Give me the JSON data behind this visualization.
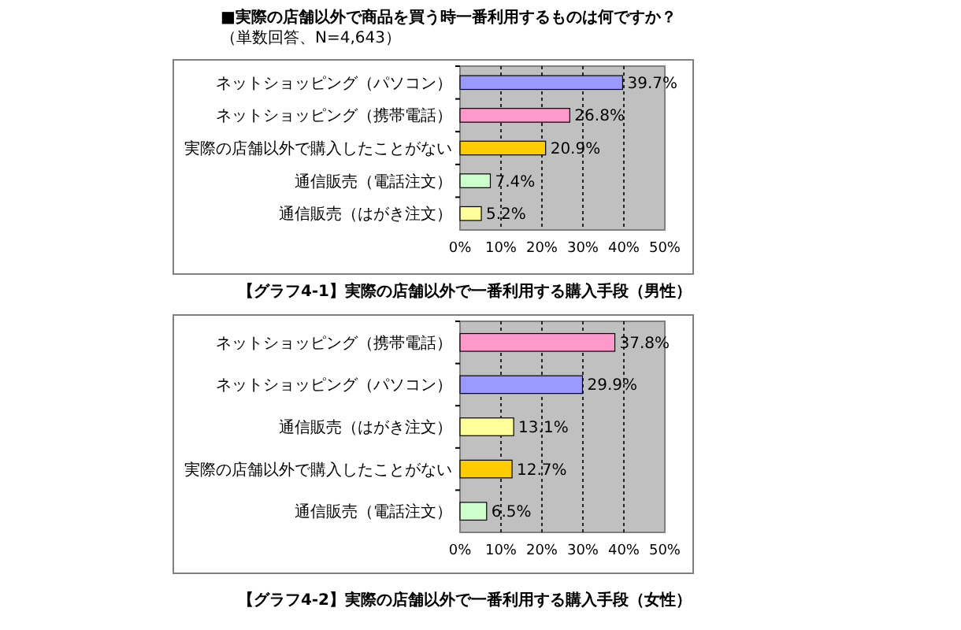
{
  "chart_data": [
    {
      "type": "bar",
      "orientation": "horizontal",
      "title": "■実際の店舗以外で商品を買う時一番利用するものは何ですか？",
      "subtitle": "（単数回答、N=4,643）",
      "categories": [
        "ネットショッピング（パソコン）",
        "ネットショッピング（携帯電話）",
        "実際の店舗以外で購入したことがない",
        "通信販売（電話注文）",
        "通信販売（はがき注文）"
      ],
      "values": [
        39.7,
        26.8,
        20.9,
        7.4,
        5.2
      ],
      "colors": [
        "#9999ff",
        "#ff99cc",
        "#ffcc00",
        "#ccffcc",
        "#ffff99"
      ],
      "value_labels": [
        "39.7%",
        "26.8%",
        "20.9%",
        "7.4%",
        "5.2%"
      ],
      "xlim": [
        0,
        50
      ],
      "xticks": [
        {
          "value": 0,
          "label": "0%"
        },
        {
          "value": 10,
          "label": "10%"
        },
        {
          "value": 20,
          "label": "20%"
        },
        {
          "value": 30,
          "label": "30%"
        },
        {
          "value": 40,
          "label": "40%"
        },
        {
          "value": 50,
          "label": "50%"
        }
      ],
      "grid": "x",
      "annotations": [
        "【グラフ4-1】実際の店舗以外で一番利用する購入手段（男性）"
      ]
    },
    {
      "type": "bar",
      "orientation": "horizontal",
      "categories": [
        "ネットショッピング（携帯電話）",
        "ネットショッピング（パソコン）",
        "通信販売（はがき注文）",
        "実際の店舗以外で購入したことがない",
        "通信販売（電話注文）"
      ],
      "values": [
        37.8,
        29.9,
        13.1,
        12.7,
        6.5
      ],
      "colors": [
        "#ff99cc",
        "#9999ff",
        "#ffff99",
        "#ffcc00",
        "#ccffcc"
      ],
      "value_labels": [
        "37.8%",
        "29.9%",
        "13.1%",
        "12.7%",
        "6.5%"
      ],
      "xlim": [
        0,
        50
      ],
      "xticks": [
        {
          "value": 0,
          "label": "0%"
        },
        {
          "value": 10,
          "label": "10%"
        },
        {
          "value": 20,
          "label": "20%"
        },
        {
          "value": 30,
          "label": "30%"
        },
        {
          "value": 40,
          "label": "40%"
        },
        {
          "value": 50,
          "label": "50%"
        }
      ],
      "grid": "x",
      "annotations": [
        "【グラフ4-2】実際の店舗以外で一番利用する購入手段（女性）"
      ]
    }
  ]
}
